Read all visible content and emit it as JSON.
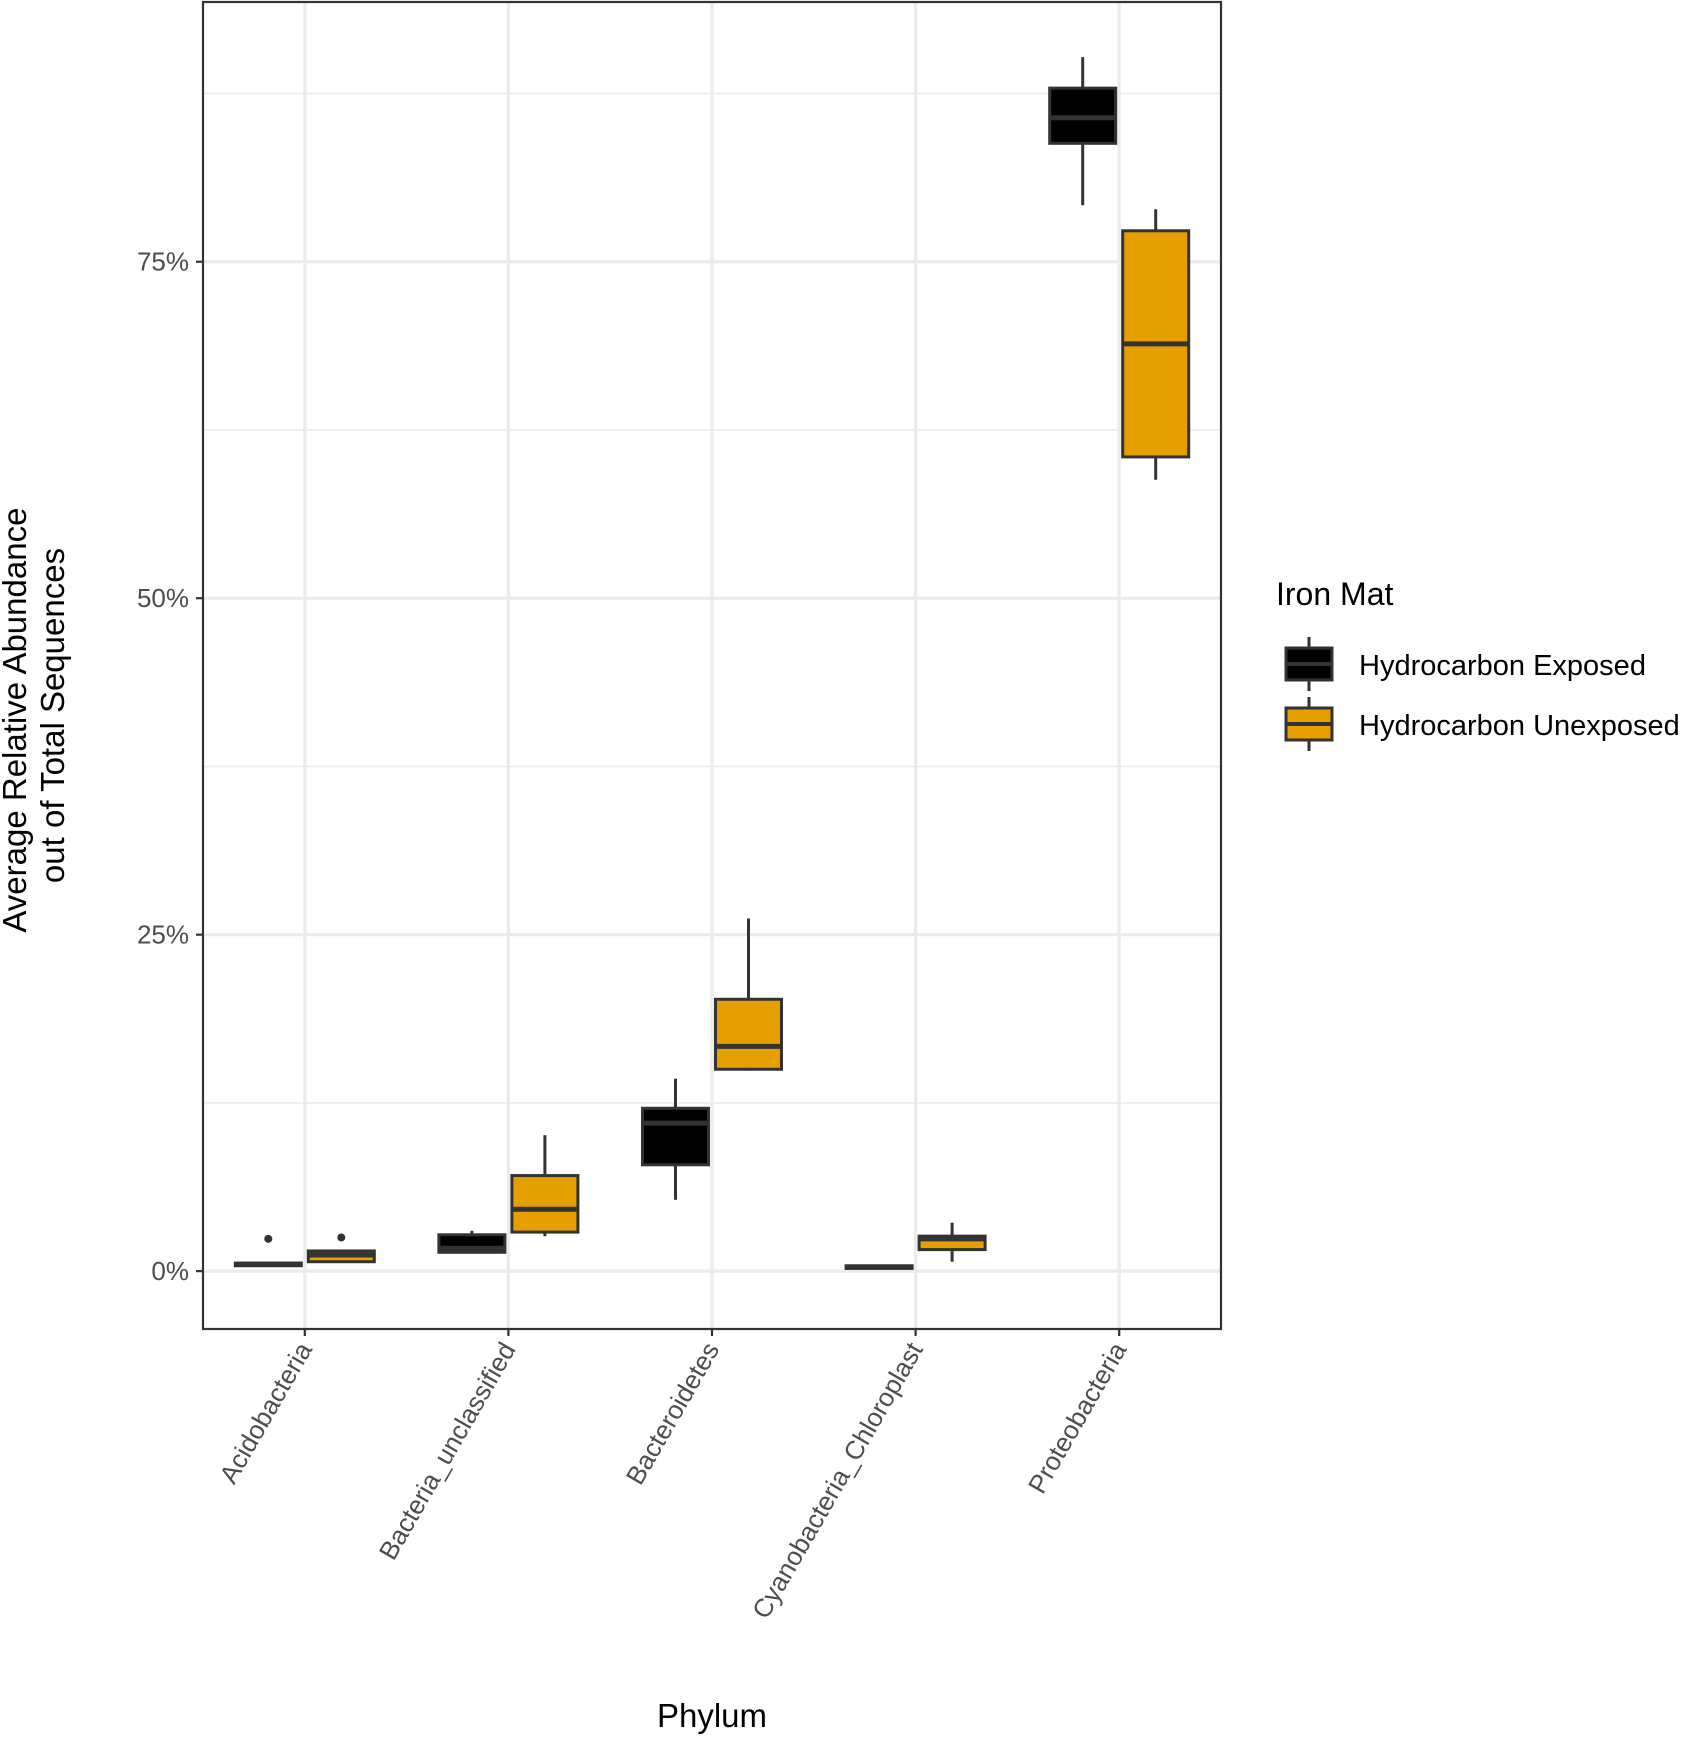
{
  "chart_data": {
    "type": "boxplot",
    "xlabel": "Phylum",
    "ylabel_lines": [
      "Average Relative Abundance",
      "out of Total Sequences"
    ],
    "ylim": [
      -4.3,
      94.3
    ],
    "y_ticks": [
      0,
      25,
      50,
      75
    ],
    "y_tick_labels": [
      "0%",
      "25%",
      "50%",
      "75%"
    ],
    "grid": true,
    "categories": [
      "Acidobacteria",
      "Bacteria_unclassified",
      "Bacteroidetes",
      "Cyanobacteria_Chloroplast",
      "Proteobacteria"
    ],
    "legend": {
      "title": "Iron Mat",
      "position": "right",
      "entries": [
        {
          "label": "Hydrocarbon Exposed",
          "color": "#000000"
        },
        {
          "label": "Hydrocarbon Unexposed",
          "color": "#E69F00"
        }
      ]
    },
    "series": [
      {
        "name": "Hydrocarbon Exposed",
        "color": "#000000",
        "boxes": [
          {
            "category": "Acidobacteria",
            "min": 0.4,
            "q1": 0.4,
            "median": 0.5,
            "q3": 0.6,
            "max": 0.7,
            "outliers": [
              2.4
            ]
          },
          {
            "category": "Bacteria_unclassified",
            "min": 1.4,
            "q1": 1.4,
            "median": 1.7,
            "q3": 2.7,
            "max": 3.0,
            "outliers": []
          },
          {
            "category": "Bacteroidetes",
            "min": 5.3,
            "q1": 7.9,
            "median": 11.0,
            "q3": 12.1,
            "max": 14.3,
            "outliers": []
          },
          {
            "category": "Cyanobacteria_Chloroplast",
            "min": 0.2,
            "q1": 0.2,
            "median": 0.3,
            "q3": 0.4,
            "max": 0.4,
            "outliers": []
          },
          {
            "category": "Proteobacteria",
            "min": 79.2,
            "q1": 83.8,
            "median": 85.7,
            "q3": 87.9,
            "max": 90.2,
            "outliers": []
          }
        ]
      },
      {
        "name": "Hydrocarbon Unexposed",
        "color": "#E69F00",
        "boxes": [
          {
            "category": "Acidobacteria",
            "min": 0.7,
            "q1": 0.7,
            "median": 1.2,
            "q3": 1.5,
            "max": 1.5,
            "outliers": [
              2.5
            ]
          },
          {
            "category": "Bacteria_unclassified",
            "min": 2.6,
            "q1": 2.9,
            "median": 4.6,
            "q3": 7.1,
            "max": 10.1,
            "outliers": []
          },
          {
            "category": "Bacteroidetes",
            "min": 14.9,
            "q1": 15.0,
            "median": 16.7,
            "q3": 20.2,
            "max": 26.2,
            "outliers": []
          },
          {
            "category": "Cyanobacteria_Chloroplast",
            "min": 0.7,
            "q1": 1.6,
            "median": 2.4,
            "q3": 2.6,
            "max": 3.6,
            "outliers": []
          },
          {
            "category": "Proteobacteria",
            "min": 58.8,
            "q1": 60.5,
            "median": 68.9,
            "q3": 77.3,
            "max": 78.9,
            "outliers": []
          }
        ]
      }
    ]
  }
}
